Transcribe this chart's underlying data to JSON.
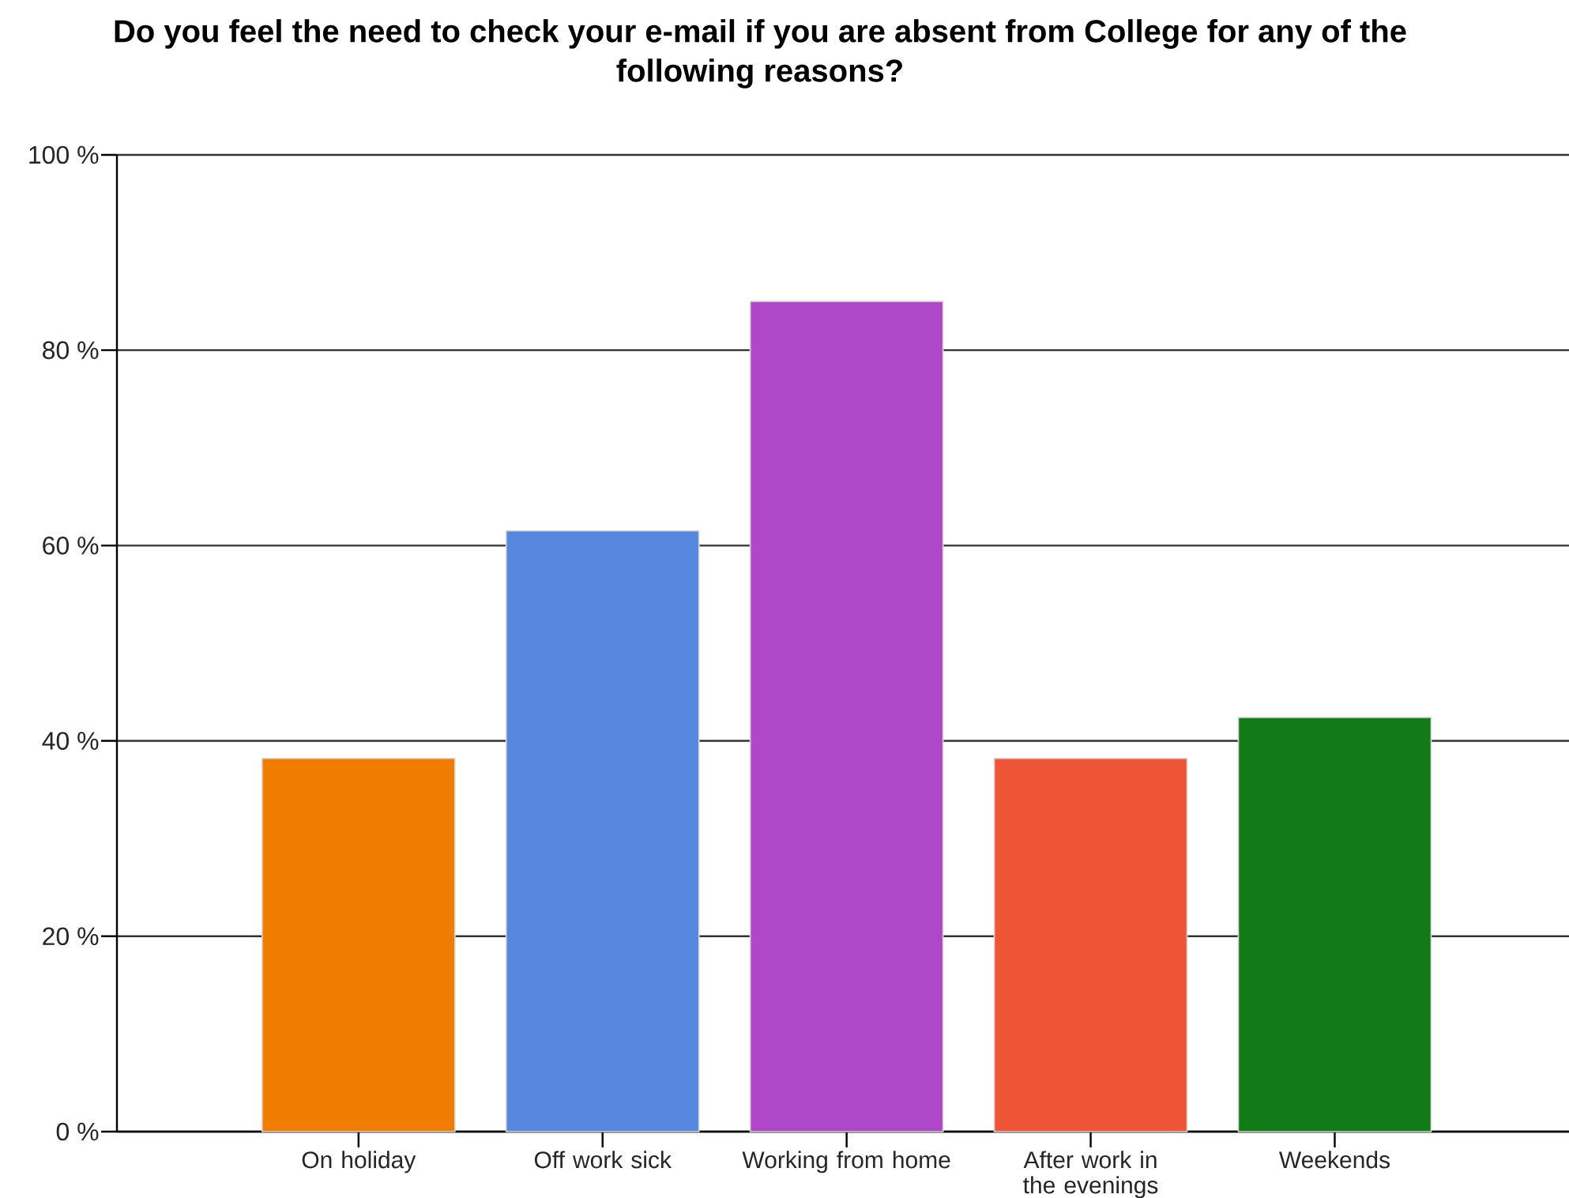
{
  "chart_data": {
    "type": "bar",
    "title": "Do you feel the need to check your e-mail if you are absent from College for any of the following reasons?",
    "categories": [
      "On holiday",
      "Off work sick",
      "Working from home",
      "After work in the evenings",
      "Weekends"
    ],
    "values": [
      38.2,
      61.5,
      85.0,
      38.2,
      42.4
    ],
    "colors": [
      "#F07C00",
      "#5688E0",
      "#AE48C8",
      "#EE5436",
      "#127A16"
    ],
    "ylim": [
      0,
      100
    ],
    "yticks": [
      {
        "value": 0,
        "label": "0 %"
      },
      {
        "value": 20,
        "label": "20 %"
      },
      {
        "value": 40,
        "label": "40 %"
      },
      {
        "value": 60,
        "label": "60 %"
      },
      {
        "value": 80,
        "label": "80 %"
      },
      {
        "value": 100,
        "label": "100 %"
      }
    ],
    "grid": "y"
  }
}
